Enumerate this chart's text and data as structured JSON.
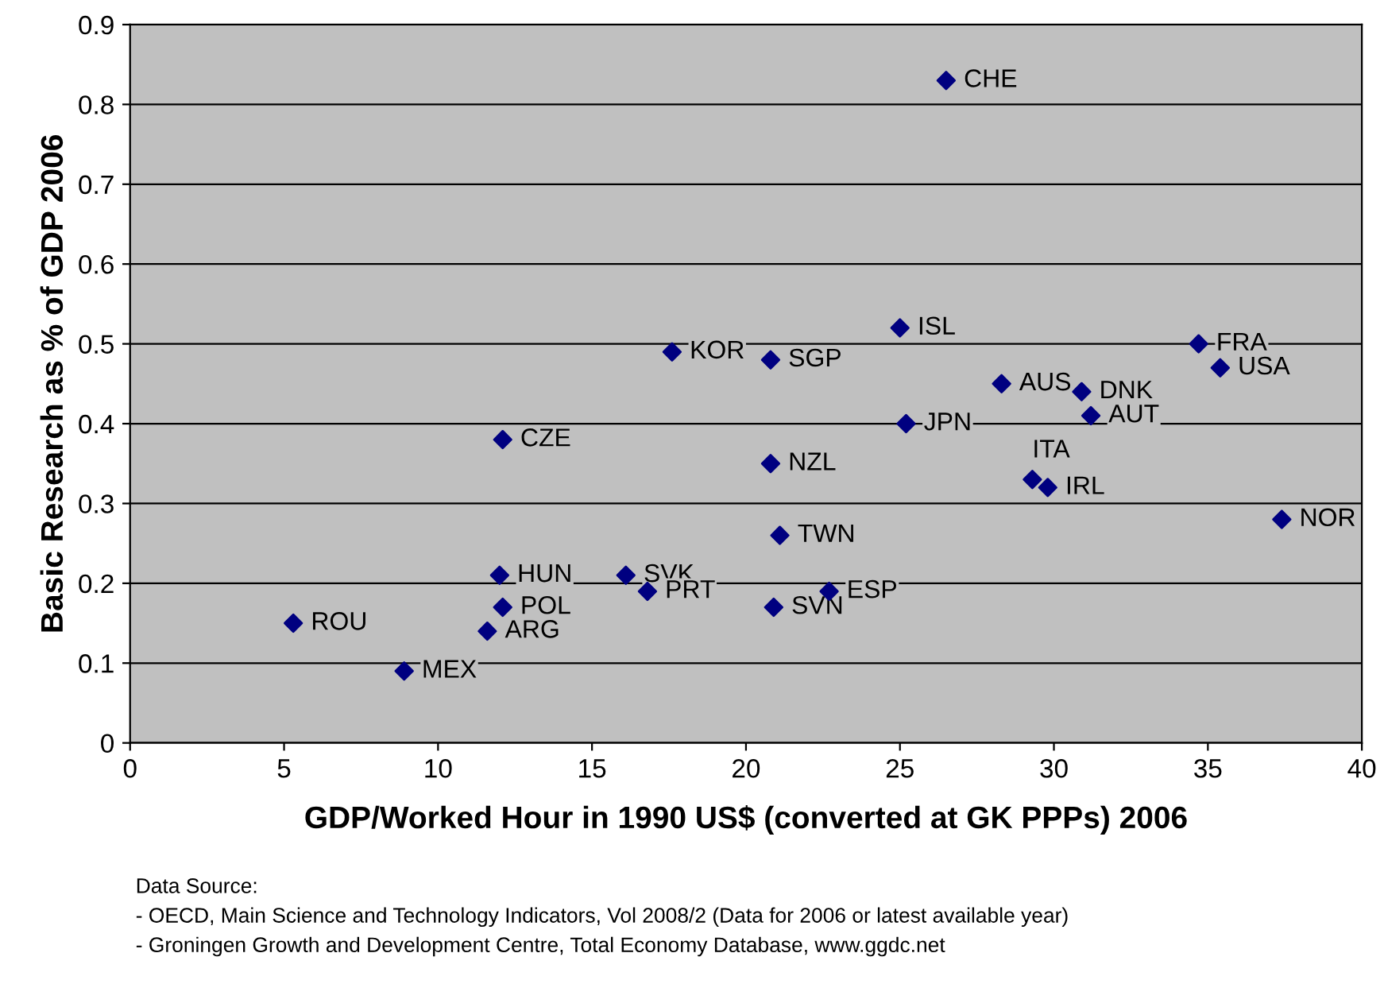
{
  "chart_data": {
    "type": "scatter",
    "xlabel": "GDP/Worked Hour in 1990 US$ (converted at GK PPPs) 2006",
    "ylabel": "Basic Research as % of GDP 2006",
    "x": [
      26.5,
      25.0,
      34.7,
      17.6,
      20.8,
      35.4,
      28.3,
      30.9,
      31.2,
      25.2,
      12.1,
      20.8,
      29.3,
      29.8,
      37.4,
      21.1,
      12.0,
      16.1,
      16.8,
      22.7,
      12.1,
      20.9,
      5.3,
      11.6,
      8.9
    ],
    "series": [
      {
        "color": "#000080",
        "values": [
          0.83,
          0.52,
          0.5,
          0.49,
          0.48,
          0.47,
          0.45,
          0.44,
          0.41,
          0.4,
          0.38,
          0.35,
          0.33,
          0.32,
          0.28,
          0.26,
          0.21,
          0.21,
          0.19,
          0.19,
          0.17,
          0.17,
          0.15,
          0.14,
          0.09
        ]
      }
    ],
    "annotations": [
      {
        "text": "CHE",
        "x": 26.5,
        "y": 0.83
      },
      {
        "text": "ISL",
        "x": 25.0,
        "y": 0.52
      },
      {
        "text": "FRA",
        "x": 34.7,
        "y": 0.5
      },
      {
        "text": "KOR",
        "x": 17.6,
        "y": 0.49
      },
      {
        "text": "SGP",
        "x": 20.8,
        "y": 0.48
      },
      {
        "text": "USA",
        "x": 35.4,
        "y": 0.47
      },
      {
        "text": "AUS",
        "x": 28.3,
        "y": 0.45
      },
      {
        "text": "DNK",
        "x": 30.9,
        "y": 0.44
      },
      {
        "text": "AUT",
        "x": 31.2,
        "y": 0.41
      },
      {
        "text": "JPN",
        "x": 25.2,
        "y": 0.4
      },
      {
        "text": "CZE",
        "x": 12.1,
        "y": 0.38
      },
      {
        "text": "NZL",
        "x": 20.8,
        "y": 0.35
      },
      {
        "text": "ITA",
        "x": 29.3,
        "y": 0.33
      },
      {
        "text": "IRL",
        "x": 29.8,
        "y": 0.32
      },
      {
        "text": "NOR",
        "x": 37.4,
        "y": 0.28
      },
      {
        "text": "TWN",
        "x": 21.1,
        "y": 0.26
      },
      {
        "text": "HUN",
        "x": 12.0,
        "y": 0.21
      },
      {
        "text": "SVK",
        "x": 16.1,
        "y": 0.21
      },
      {
        "text": "PRT",
        "x": 16.8,
        "y": 0.19
      },
      {
        "text": "ESP",
        "x": 22.7,
        "y": 0.19
      },
      {
        "text": "POL",
        "x": 12.1,
        "y": 0.17
      },
      {
        "text": "SVN",
        "x": 20.9,
        "y": 0.17
      },
      {
        "text": "ROU",
        "x": 5.3,
        "y": 0.15
      },
      {
        "text": "ARG",
        "x": 11.6,
        "y": 0.14
      },
      {
        "text": "MEX",
        "x": 8.9,
        "y": 0.09
      },
      "Data Source:",
      "- OECD, Main Science and Technology Indicators, Vol 2008/2 (Data for 2006 or latest available year)",
      "- Groningen Growth and Development Centre, Total Economy Database, www.ggdc.net"
    ],
    "xlim": [
      0,
      40
    ],
    "xticks": [
      0,
      5,
      10,
      15,
      20,
      25,
      30,
      35,
      40
    ],
    "ylim": [
      0,
      0.9
    ],
    "yticks": [
      0,
      0.1,
      0.2,
      0.3,
      0.4,
      0.5,
      0.6,
      0.7,
      0.8,
      0.9
    ],
    "grid": "y",
    "marker": "diamond",
    "legend": false
  }
}
